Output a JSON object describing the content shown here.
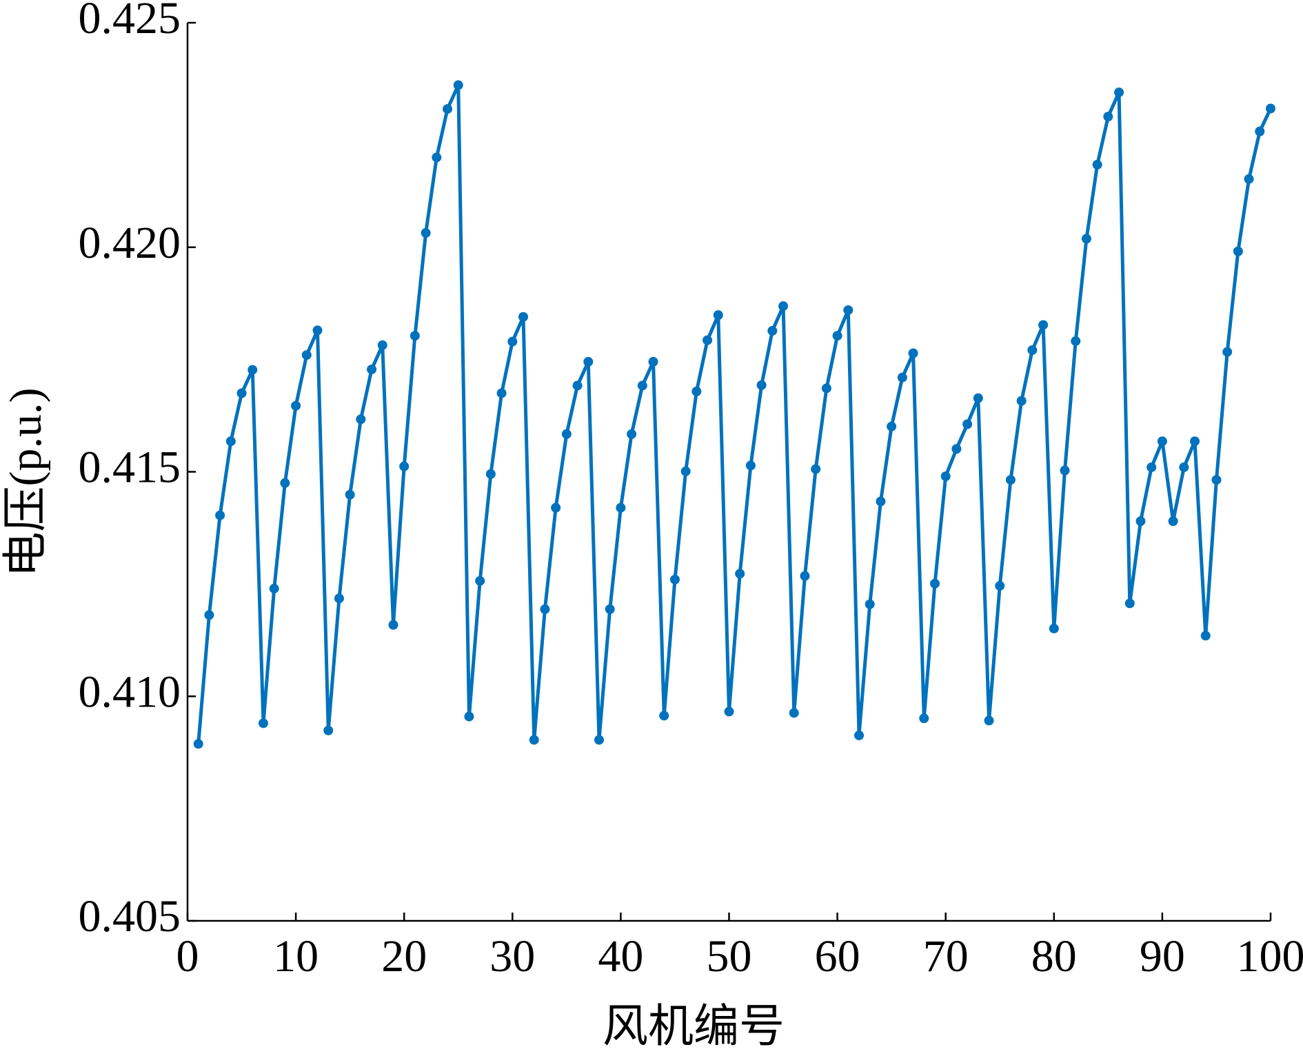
{
  "chart_data": {
    "type": "line",
    "xlabel": "风机编号",
    "ylabel": "电压(p.u.)",
    "x": [
      1,
      2,
      3,
      4,
      5,
      6,
      7,
      8,
      9,
      10,
      11,
      12,
      13,
      14,
      15,
      16,
      17,
      18,
      19,
      20,
      21,
      22,
      23,
      24,
      25,
      26,
      27,
      28,
      29,
      30,
      31,
      32,
      33,
      34,
      35,
      36,
      37,
      38,
      39,
      40,
      41,
      42,
      43,
      44,
      45,
      46,
      47,
      48,
      49,
      50,
      51,
      52,
      53,
      54,
      55,
      56,
      57,
      58,
      59,
      60,
      61,
      62,
      63,
      64,
      65,
      66,
      67,
      68,
      69,
      70,
      71,
      72,
      73,
      74,
      75,
      76,
      77,
      78,
      79,
      80,
      81,
      82,
      83,
      84,
      85,
      86,
      87,
      88,
      89,
      90,
      91,
      92,
      93,
      94,
      95,
      96,
      97,
      98,
      99,
      100
    ],
    "series": [
      {
        "color": "#0072bd",
        "values": [
          0.40894,
          0.41181,
          0.41403,
          0.41568,
          0.41675,
          0.41727,
          0.4094,
          0.4124,
          0.41475,
          0.41647,
          0.4176,
          0.41815,
          0.40924,
          0.41218,
          0.41449,
          0.41617,
          0.41728,
          0.41782,
          0.41159,
          0.41512,
          0.41803,
          0.42032,
          0.422,
          0.42308,
          0.42361,
          0.40955,
          0.41257,
          0.41495,
          0.41675,
          0.4179,
          0.41845,
          0.40903,
          0.41194,
          0.4142,
          0.41584,
          0.41692,
          0.41745,
          0.40903,
          0.41194,
          0.4142,
          0.41584,
          0.41692,
          0.41745,
          0.40957,
          0.4126,
          0.41501,
          0.41679,
          0.41793,
          0.41849,
          0.40966,
          0.41273,
          0.41514,
          0.41693,
          0.41814,
          0.41869,
          0.40963,
          0.41268,
          0.41506,
          0.41686,
          0.41803,
          0.4186,
          0.40913,
          0.41205,
          0.41434,
          0.41601,
          0.4171,
          0.41764,
          0.40951,
          0.41251,
          0.4149,
          0.41551,
          0.41606,
          0.41664,
          0.40946,
          0.41246,
          0.41482,
          0.41658,
          0.41771,
          0.41827,
          0.41151,
          0.41503,
          0.41791,
          0.42019,
          0.42184,
          0.42291,
          0.42345,
          0.41207,
          0.4139,
          0.4151,
          0.41568,
          0.4139,
          0.4151,
          0.41568,
          0.41135,
          0.41482,
          0.41767,
          0.41991,
          0.42152,
          0.42258,
          0.42309
        ]
      }
    ],
    "xlim": [
      0,
      100
    ],
    "xticks": [
      0,
      10,
      20,
      30,
      40,
      50,
      60,
      70,
      80,
      90,
      100
    ],
    "ylim": [
      0.405,
      0.425
    ],
    "yticks": [
      0.405,
      {
        "value": 0.41,
        "label": "0.410"
      },
      0.415,
      {
        "value": 0.42,
        "label": "0.420"
      },
      0.425
    ],
    "grid": false
  }
}
